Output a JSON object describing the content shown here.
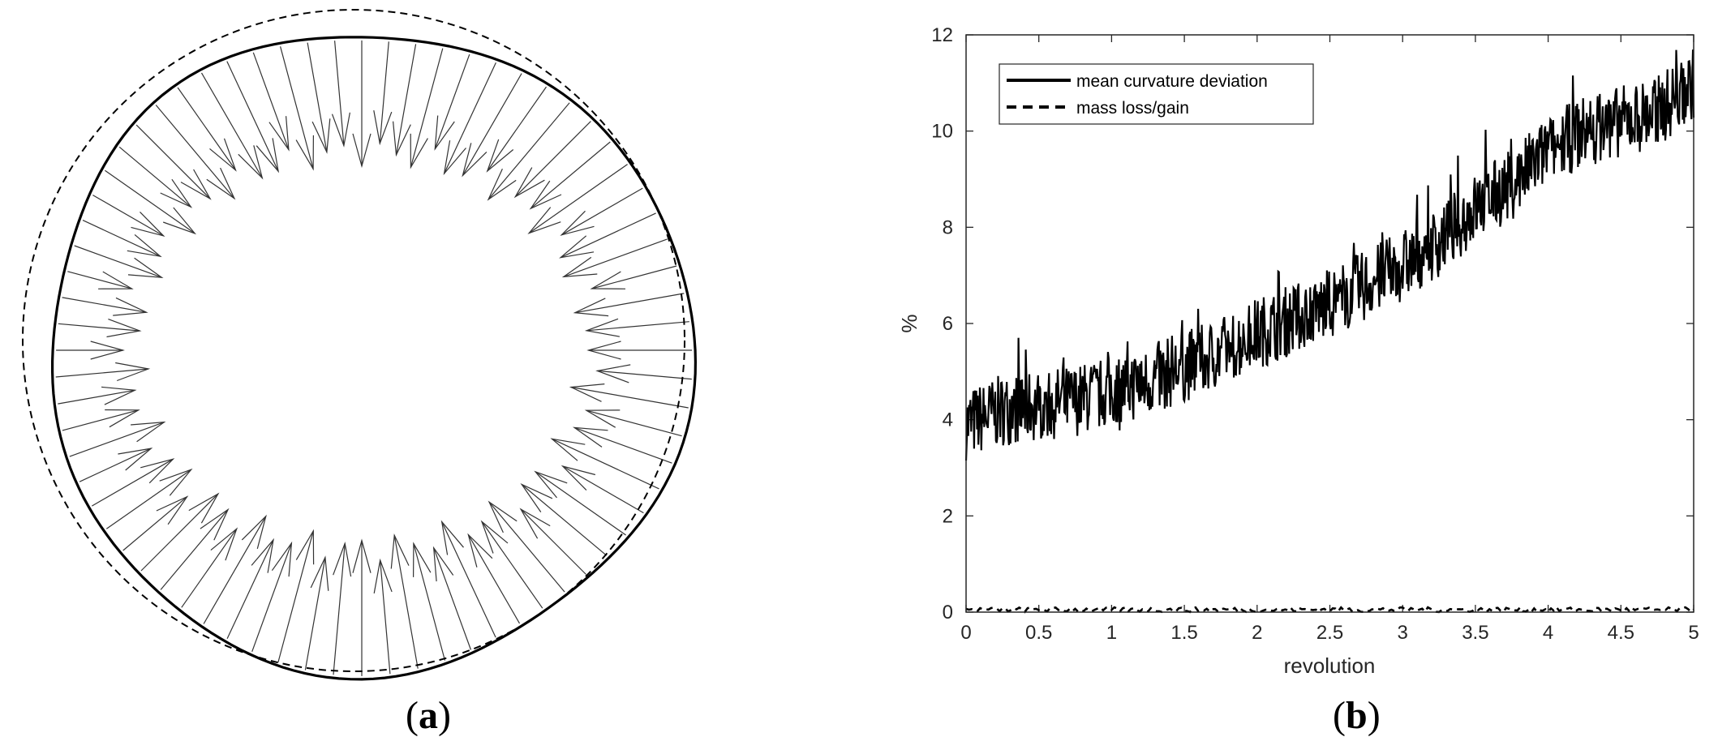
{
  "captions": {
    "a_open": "(",
    "a_letter": "a",
    "a_close": ")",
    "b_open": "(",
    "b_letter": "b",
    "b_close": ")"
  },
  "chart_data": [
    {
      "panel": "a",
      "type": "diagram",
      "description_elements": [
        "solid deformed circle",
        "dashed reference circle",
        "inward normal arrows"
      ],
      "arrow_count": 72
    },
    {
      "panel": "b",
      "type": "line",
      "xlabel": "revolution",
      "ylabel": "%",
      "xlim": [
        0,
        5
      ],
      "ylim": [
        0,
        12
      ],
      "xticks": [
        "0",
        "0.5",
        "1",
        "1.5",
        "2",
        "2.5",
        "3",
        "3.5",
        "4",
        "4.5",
        "5"
      ],
      "yticks": [
        "0",
        "2",
        "4",
        "6",
        "8",
        "10",
        "12"
      ],
      "legend_position": "top-left",
      "series": [
        {
          "name": "mean curvature deviation",
          "style": "solid",
          "color": "#000000",
          "x": [
            0,
            0.25,
            0.5,
            0.75,
            1.0,
            1.25,
            1.5,
            1.75,
            2.0,
            2.25,
            2.5,
            2.75,
            3.0,
            3.25,
            3.5,
            3.75,
            4.0,
            4.25,
            4.5,
            4.75,
            5.0
          ],
          "y": [
            3.9,
            4.2,
            4.3,
            4.4,
            4.6,
            4.8,
            5.1,
            5.4,
            5.8,
            6.1,
            6.4,
            6.8,
            7.2,
            7.7,
            8.4,
            8.9,
            9.6,
            10.0,
            10.2,
            10.4,
            11.0
          ],
          "noise_amplitude": 0.75
        },
        {
          "name": "mass loss/gain",
          "style": "dashed",
          "color": "#000000",
          "x": [
            0,
            5
          ],
          "y": [
            0.05,
            0.05
          ],
          "noise_amplitude": 0.05
        }
      ]
    }
  ]
}
